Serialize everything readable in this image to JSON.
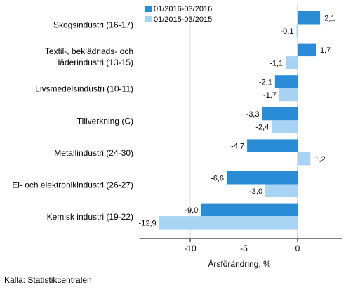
{
  "chart_data": {
    "type": "bar",
    "orientation": "horizontal",
    "categories": [
      [
        "Skogsindustri (16-17)"
      ],
      [
        "Textil-, beklädnads- och",
        "läderindustri (13-15)"
      ],
      [
        "Livsmedelsindustri (10-11)"
      ],
      [
        "Tillverkning (C)"
      ],
      [
        "Metallindustri (24-30)"
      ],
      [
        "El- och elektronikindustri (26-27)"
      ],
      [
        "Kemisk industri (19-22)"
      ]
    ],
    "series": [
      {
        "name": "01/2016-03/2016",
        "color": "#2b8cd6",
        "values": [
          2.1,
          1.7,
          -2.1,
          -3.3,
          -4.7,
          -6.6,
          -9.0
        ],
        "labels": [
          "2,1",
          "1,7",
          "-2,1",
          "-3,3",
          "-4,7",
          "-6,6",
          "-9,0"
        ]
      },
      {
        "name": "01/2015-03/2015",
        "color": "#a8d3f2",
        "values": [
          -0.1,
          -1.1,
          -1.7,
          -2.4,
          1.2,
          -3.0,
          -12.9
        ],
        "labels": [
          "-0,1",
          "-1,1",
          "-1,7",
          "-2,4",
          "1,2",
          "-3,0",
          "-12,9"
        ]
      }
    ],
    "xlabel": "Årsförändring, %",
    "xlim": [
      -15.5,
      3.3
    ],
    "xticks": [
      -10,
      -5,
      0
    ],
    "xtick_labels": [
      "-10",
      "-5",
      "0"
    ],
    "grid": "vertical",
    "legend_position": "top-right"
  },
  "source": "Källa: Statistikcentralen"
}
